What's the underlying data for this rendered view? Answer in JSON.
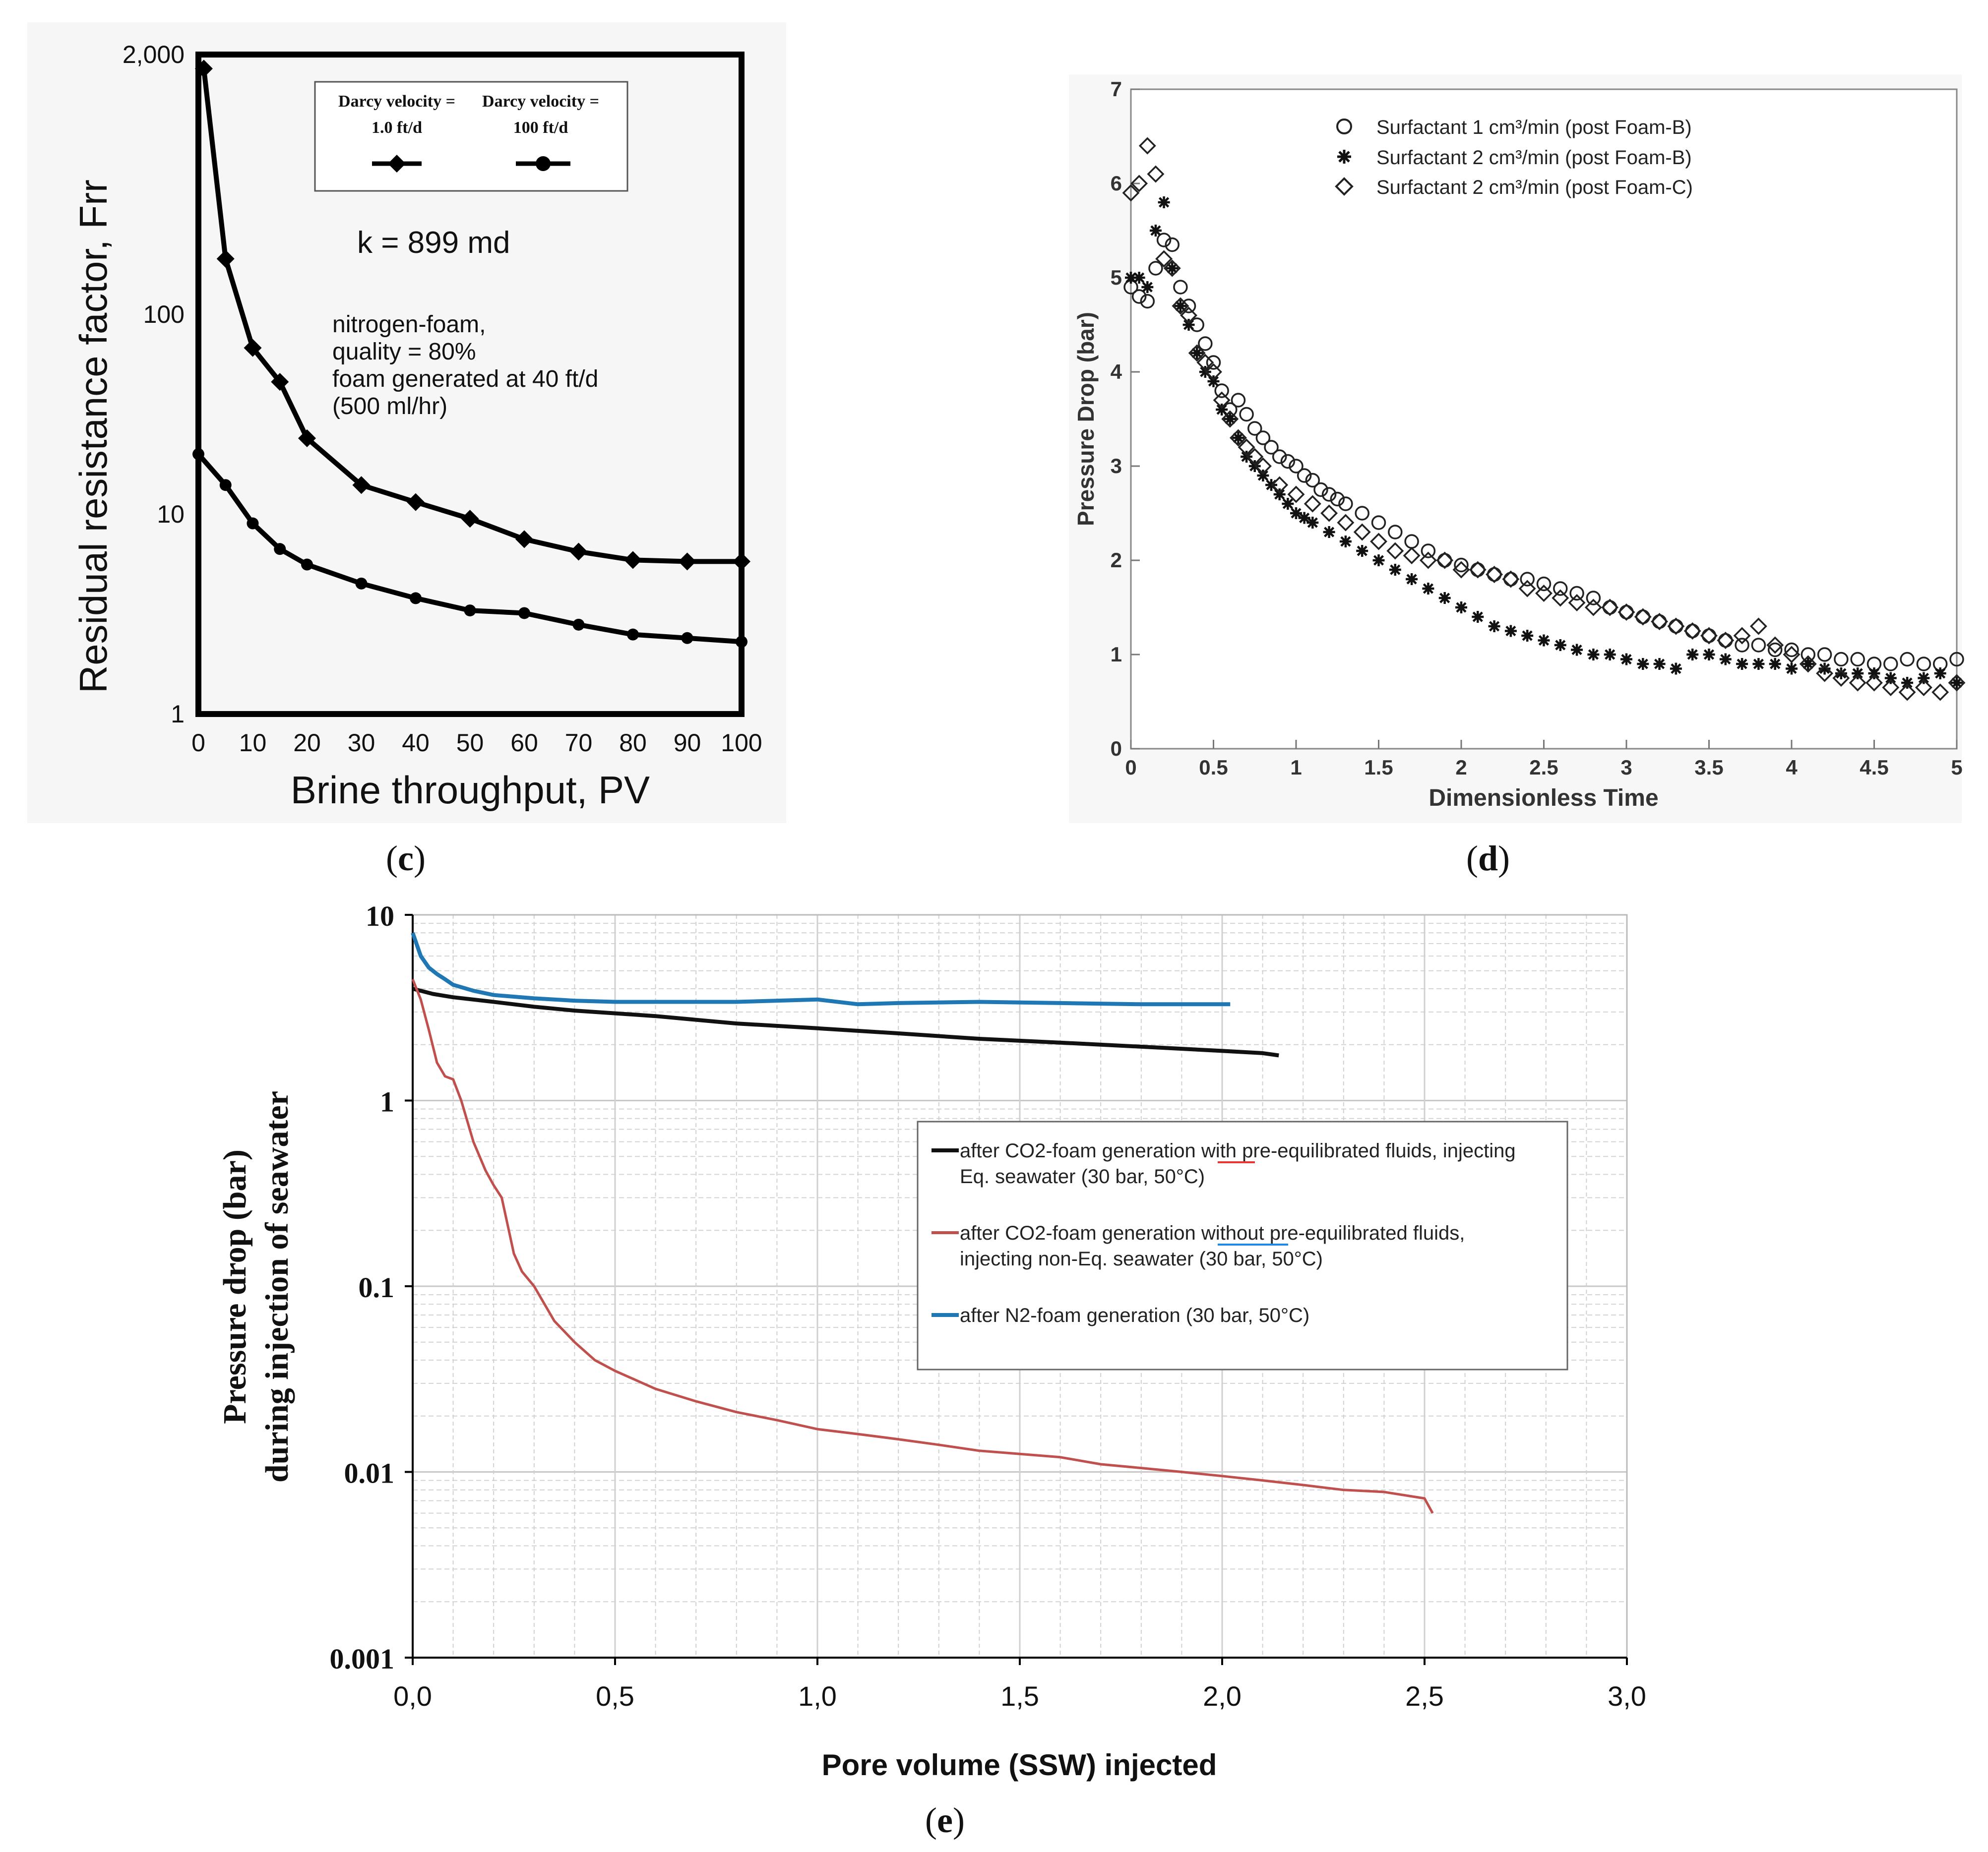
{
  "chart_data": [
    {
      "id": "c",
      "type": "line",
      "panel_label": "(c)",
      "panel_letter": "c",
      "xlabel": "Brine throughput, PV",
      "ylabel": "Residual resistance factor, Frr",
      "xlim": [
        0,
        100
      ],
      "ylim": [
        1,
        2000
      ],
      "yscale": "log",
      "x_ticks": [
        "0",
        "10",
        "20",
        "30",
        "40",
        "50",
        "60",
        "70",
        "80",
        "90",
        "100"
      ],
      "y_ticks": [
        {
          "value": 1,
          "label": "1"
        },
        {
          "value": 10,
          "label": "10"
        },
        {
          "value": 100,
          "label": "100"
        },
        {
          "value": 2000,
          "label": "2,000"
        }
      ],
      "legend": [
        {
          "label_line1": "Darcy velocity =",
          "label_line2": "1.0 ft/d",
          "marker": "diamond"
        },
        {
          "label_line1": "Darcy velocity =",
          "label_line2": "100 ft/d",
          "marker": "circle"
        }
      ],
      "annotations": {
        "permeability": "k = 899 md",
        "notes": [
          "nitrogen-foam,",
          "quality = 80%",
          "foam generated at 40 ft/d",
          "(500 ml/hr)"
        ]
      },
      "series": [
        {
          "name": "Darcy velocity = 1.0 ft/d",
          "marker": "diamond",
          "x": [
            1,
            5,
            10,
            15,
            20,
            30,
            40,
            50,
            60,
            70,
            80,
            90,
            100
          ],
          "y": [
            1700,
            190,
            68,
            46,
            24,
            14,
            11.5,
            9.5,
            7.5,
            6.5,
            5.9,
            5.8,
            5.8
          ]
        },
        {
          "name": "Darcy velocity = 100 ft/d",
          "marker": "circle",
          "x": [
            0,
            5,
            10,
            15,
            20,
            30,
            40,
            50,
            60,
            70,
            80,
            90,
            100
          ],
          "y": [
            20,
            14,
            9,
            6.7,
            5.6,
            4.5,
            3.8,
            3.3,
            3.2,
            2.8,
            2.5,
            2.4,
            2.3
          ]
        }
      ]
    },
    {
      "id": "d",
      "type": "scatter",
      "panel_label": "(d)",
      "panel_letter": "d",
      "xlabel": "Dimensionless Time",
      "ylabel": "Pressure Drop (bar)",
      "xlim": [
        0,
        5
      ],
      "ylim": [
        0,
        7
      ],
      "x_ticks": [
        "0",
        "0.5",
        "1",
        "1.5",
        "2",
        "2.5",
        "3",
        "3.5",
        "4",
        "4.5",
        "5"
      ],
      "y_ticks": [
        "0",
        "1",
        "2",
        "3",
        "4",
        "5",
        "6",
        "7"
      ],
      "legend": [
        {
          "text": "Surfactant 1 cm³/min (post Foam-B)",
          "marker": "circle"
        },
        {
          "text": "Surfactant 2 cm³/min (post Foam-B)",
          "marker": "star"
        },
        {
          "text": "Surfactant 2 cm³/min (post Foam-C)",
          "marker": "diamond"
        }
      ],
      "series": [
        {
          "name": "Surfactant 1 cm³/min (post Foam-B)",
          "marker": "circle",
          "x": [
            0,
            0.05,
            0.1,
            0.15,
            0.2,
            0.25,
            0.3,
            0.35,
            0.4,
            0.45,
            0.5,
            0.55,
            0.6,
            0.65,
            0.7,
            0.75,
            0.8,
            0.85,
            0.9,
            0.95,
            1.0,
            1.05,
            1.1,
            1.15,
            1.2,
            1.25,
            1.3,
            1.4,
            1.5,
            1.6,
            1.7,
            1.8,
            1.9,
            2.0,
            2.1,
            2.2,
            2.3,
            2.4,
            2.5,
            2.6,
            2.7,
            2.8,
            2.9,
            3.0,
            3.1,
            3.2,
            3.3,
            3.4,
            3.5,
            3.6,
            3.7,
            3.8,
            3.9,
            4.0,
            4.1,
            4.2,
            4.3,
            4.4,
            4.5,
            4.6,
            4.7,
            4.8,
            4.9,
            5.0
          ],
          "y": [
            4.9,
            4.8,
            4.75,
            5.1,
            5.4,
            5.35,
            4.9,
            4.7,
            4.5,
            4.3,
            4.1,
            3.8,
            3.6,
            3.7,
            3.55,
            3.4,
            3.3,
            3.2,
            3.1,
            3.05,
            3.0,
            2.9,
            2.85,
            2.75,
            2.7,
            2.65,
            2.6,
            2.5,
            2.4,
            2.3,
            2.2,
            2.1,
            2.0,
            1.95,
            1.9,
            1.85,
            1.8,
            1.8,
            1.75,
            1.7,
            1.65,
            1.6,
            1.5,
            1.45,
            1.4,
            1.35,
            1.3,
            1.25,
            1.2,
            1.15,
            1.1,
            1.1,
            1.05,
            1.05,
            1.0,
            1.0,
            0.95,
            0.95,
            0.9,
            0.9,
            0.95,
            0.9,
            0.9,
            0.95
          ]
        },
        {
          "name": "Surfactant 2 cm³/min (post Foam-B)",
          "marker": "star",
          "x": [
            0,
            0.05,
            0.1,
            0.15,
            0.2,
            0.25,
            0.3,
            0.35,
            0.4,
            0.45,
            0.5,
            0.55,
            0.6,
            0.65,
            0.7,
            0.75,
            0.8,
            0.85,
            0.9,
            0.95,
            1.0,
            1.05,
            1.1,
            1.2,
            1.3,
            1.4,
            1.5,
            1.6,
            1.7,
            1.8,
            1.9,
            2.0,
            2.1,
            2.2,
            2.3,
            2.4,
            2.5,
            2.6,
            2.7,
            2.8,
            2.9,
            3.0,
            3.1,
            3.2,
            3.3,
            3.4,
            3.5,
            3.6,
            3.7,
            3.8,
            3.9,
            4.0,
            4.1,
            4.2,
            4.3,
            4.4,
            4.5,
            4.6,
            4.7,
            4.8,
            4.9,
            5.0
          ],
          "y": [
            5.0,
            5.0,
            4.9,
            5.5,
            5.8,
            5.1,
            4.7,
            4.5,
            4.2,
            4.0,
            3.9,
            3.6,
            3.5,
            3.3,
            3.1,
            3.0,
            2.9,
            2.8,
            2.7,
            2.6,
            2.5,
            2.45,
            2.4,
            2.3,
            2.2,
            2.1,
            2.0,
            1.9,
            1.8,
            1.7,
            1.6,
            1.5,
            1.4,
            1.3,
            1.25,
            1.2,
            1.15,
            1.1,
            1.05,
            1.0,
            1.0,
            0.95,
            0.9,
            0.9,
            0.85,
            1.0,
            1.0,
            0.95,
            0.9,
            0.9,
            0.9,
            0.85,
            0.9,
            0.85,
            0.8,
            0.8,
            0.8,
            0.75,
            0.7,
            0.75,
            0.8,
            0.7
          ]
        },
        {
          "name": "Surfactant 2 cm³/min (post Foam-C)",
          "marker": "diamond",
          "x": [
            0,
            0.05,
            0.1,
            0.15,
            0.2,
            0.25,
            0.3,
            0.35,
            0.4,
            0.45,
            0.5,
            0.55,
            0.6,
            0.65,
            0.7,
            0.75,
            0.8,
            0.9,
            1.0,
            1.1,
            1.2,
            1.3,
            1.4,
            1.5,
            1.6,
            1.7,
            1.8,
            1.9,
            2.0,
            2.1,
            2.2,
            2.3,
            2.4,
            2.5,
            2.6,
            2.7,
            2.8,
            2.9,
            3.0,
            3.1,
            3.2,
            3.3,
            3.4,
            3.5,
            3.6,
            3.7,
            3.8,
            3.9,
            4.0,
            4.1,
            4.2,
            4.3,
            4.4,
            4.5,
            4.6,
            4.7,
            4.8,
            4.9,
            5.0
          ],
          "y": [
            5.9,
            6.0,
            6.4,
            6.1,
            5.2,
            5.1,
            4.7,
            4.6,
            4.2,
            4.1,
            4.0,
            3.7,
            3.5,
            3.3,
            3.2,
            3.1,
            3.0,
            2.8,
            2.7,
            2.6,
            2.5,
            2.4,
            2.3,
            2.2,
            2.1,
            2.05,
            2.0,
            2.0,
            1.9,
            1.9,
            1.85,
            1.8,
            1.7,
            1.65,
            1.6,
            1.55,
            1.5,
            1.5,
            1.45,
            1.4,
            1.35,
            1.3,
            1.25,
            1.2,
            1.15,
            1.2,
            1.3,
            1.1,
            1.0,
            0.9,
            0.8,
            0.75,
            0.7,
            0.7,
            0.65,
            0.6,
            0.65,
            0.6,
            0.7
          ]
        }
      ]
    },
    {
      "id": "e",
      "type": "line",
      "panel_label": "(e)",
      "panel_letter": "e",
      "xlabel": "Pore volume (SSW) injected",
      "ylabel_line1": "Pressure drop (bar)",
      "ylabel_line2": "during injection of seawater",
      "xlim": [
        0,
        3
      ],
      "ylim": [
        0.001,
        10
      ],
      "yscale": "log",
      "x_ticks": [
        "0,0",
        "0,5",
        "1,0",
        "1,5",
        "2,0",
        "2,5",
        "3,0"
      ],
      "y_ticks": [
        "10",
        "1",
        "0.1",
        "0.01",
        "0.001"
      ],
      "grid": true,
      "legend": [
        {
          "line1_pre": "after CO2-foam generation ",
          "line1_emph": "with",
          "line1_post": " pre-equilibrated fluids, injecting",
          "line2": "Eq. seawater (30 bar, 50°C)",
          "color": "#111111",
          "underline_color": "#e53935"
        },
        {
          "line1_pre": "after CO2-foam generation ",
          "line1_emph": "without",
          "line1_post": " pre-equilibrated fluids,",
          "line2": "injecting non-Eq. seawater (30 bar, 50°C)",
          "color": "#c0504d",
          "underline_color": "#1e88e5"
        },
        {
          "line1_pre": "after N2-foam generation (30 bar, 50°C)",
          "line1_emph": "",
          "line1_post": "",
          "line2": "",
          "color": "#1f77b4",
          "underline_color": ""
        }
      ],
      "series": [
        {
          "name": "after CO2-foam generation with pre-equilibrated fluids, injecting Eq. seawater (30 bar, 50°C)",
          "color": "#111111",
          "x": [
            0,
            0.02,
            0.05,
            0.1,
            0.2,
            0.3,
            0.4,
            0.5,
            0.6,
            0.8,
            1.0,
            1.2,
            1.4,
            1.6,
            1.8,
            2.0,
            2.1,
            2.14
          ],
          "y": [
            4.0,
            3.9,
            3.75,
            3.6,
            3.4,
            3.2,
            3.05,
            2.95,
            2.85,
            2.6,
            2.45,
            2.3,
            2.15,
            2.05,
            1.95,
            1.85,
            1.8,
            1.75
          ]
        },
        {
          "name": "after CO2-foam generation without pre-equilibrated fluids, injecting non-Eq. seawater (30 bar, 50°C)",
          "color": "#c0504d",
          "x": [
            0,
            0.02,
            0.04,
            0.06,
            0.08,
            0.1,
            0.12,
            0.15,
            0.18,
            0.2,
            0.22,
            0.25,
            0.27,
            0.3,
            0.35,
            0.4,
            0.45,
            0.5,
            0.6,
            0.7,
            0.8,
            0.9,
            1.0,
            1.1,
            1.2,
            1.3,
            1.4,
            1.5,
            1.6,
            1.7,
            1.8,
            1.9,
            2.0,
            2.1,
            2.2,
            2.3,
            2.4,
            2.5,
            2.52
          ],
          "y": [
            4.5,
            3.5,
            2.4,
            1.6,
            1.35,
            1.3,
            1.0,
            0.6,
            0.42,
            0.35,
            0.3,
            0.15,
            0.12,
            0.1,
            0.065,
            0.05,
            0.04,
            0.035,
            0.028,
            0.024,
            0.021,
            0.019,
            0.017,
            0.016,
            0.015,
            0.014,
            0.013,
            0.0125,
            0.012,
            0.011,
            0.0105,
            0.01,
            0.0095,
            0.009,
            0.0085,
            0.008,
            0.0078,
            0.0072,
            0.006
          ]
        },
        {
          "name": "after N2-foam generation (30 bar, 50°C)",
          "color": "#1f77b4",
          "x": [
            0,
            0.02,
            0.04,
            0.06,
            0.08,
            0.1,
            0.15,
            0.2,
            0.3,
            0.4,
            0.5,
            0.6,
            0.8,
            1.0,
            1.1,
            1.2,
            1.4,
            1.6,
            1.8,
            2.0,
            2.02
          ],
          "y": [
            8.0,
            6.0,
            5.2,
            4.8,
            4.5,
            4.2,
            3.9,
            3.7,
            3.55,
            3.45,
            3.4,
            3.4,
            3.4,
            3.5,
            3.3,
            3.35,
            3.4,
            3.35,
            3.3,
            3.3,
            3.3
          ]
        }
      ]
    }
  ]
}
